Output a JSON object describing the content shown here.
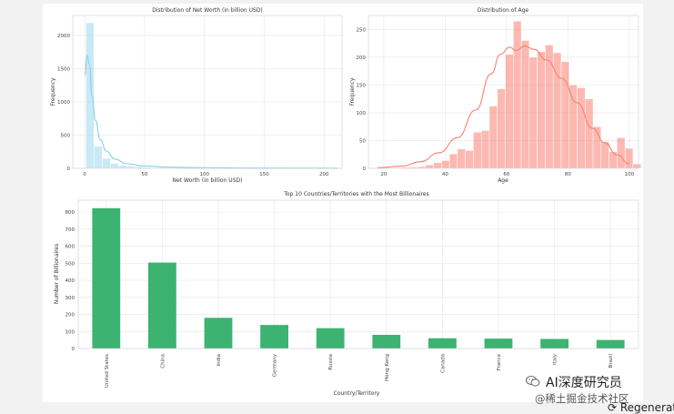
{
  "chart_data": [
    {
      "type": "histogram",
      "title": "Distribution of Net Worth (in billion USD)",
      "xlabel": "Net Worth (in billion USD)",
      "ylabel": "Frequency",
      "xlim": [
        -10,
        215
      ],
      "ylim": [
        0,
        2300
      ],
      "xticks": [
        0,
        50,
        100,
        150,
        200
      ],
      "yticks": [
        0,
        500,
        1000,
        1500,
        2000
      ],
      "bin_width": 6.8,
      "bin_start": 1,
      "values": [
        2190,
        330,
        150,
        75,
        45,
        30,
        22,
        15,
        12,
        10,
        8,
        8,
        6,
        5,
        5,
        4,
        3,
        3,
        3,
        2,
        2,
        2,
        2,
        2,
        1,
        1,
        1,
        1,
        1,
        1
      ],
      "kde": [
        [
          0,
          1400
        ],
        [
          2,
          1700
        ],
        [
          4,
          1560
        ],
        [
          6,
          1100
        ],
        [
          9,
          720
        ],
        [
          13,
          430
        ],
        [
          18,
          260
        ],
        [
          25,
          140
        ],
        [
          35,
          70
        ],
        [
          50,
          35
        ],
        [
          70,
          18
        ],
        [
          100,
          9
        ],
        [
          130,
          5
        ],
        [
          170,
          3
        ],
        [
          211,
          1
        ]
      ],
      "color": "#87ceeb"
    },
    {
      "type": "histogram",
      "title": "Distribution of Age",
      "xlabel": "Age",
      "ylabel": "Frequency",
      "xlim": [
        15,
        103
      ],
      "ylim": [
        0,
        275
      ],
      "xticks": [
        20,
        40,
        60,
        80,
        100
      ],
      "yticks": [
        0,
        50,
        100,
        150,
        200,
        250
      ],
      "bin_width": 2.6,
      "bin_start": 18,
      "values": [
        1,
        1,
        1,
        2,
        2,
        3,
        6,
        10,
        14,
        26,
        35,
        32,
        65,
        68,
        112,
        143,
        205,
        265,
        230,
        200,
        210,
        222,
        208,
        192,
        150,
        145,
        125,
        75,
        48,
        30,
        55,
        36,
        8
      ],
      "kde": [
        [
          18,
          1
        ],
        [
          26,
          4
        ],
        [
          32,
          12
        ],
        [
          38,
          28
        ],
        [
          44,
          55
        ],
        [
          50,
          105
        ],
        [
          55,
          170
        ],
        [
          58,
          205
        ],
        [
          61,
          218
        ],
        [
          63,
          212
        ],
        [
          66,
          220
        ],
        [
          69,
          214
        ],
        [
          73,
          195
        ],
        [
          78,
          162
        ],
        [
          83,
          118
        ],
        [
          88,
          72
        ],
        [
          92,
          46
        ],
        [
          96,
          24
        ],
        [
          100,
          8
        ]
      ],
      "color": "#fa8072"
    },
    {
      "type": "bar",
      "title": "Top 10 Countries/Territories with the Most Billionaires",
      "xlabel": "Country/Territory",
      "ylabel": "Number of Billionaires",
      "categories": [
        "United States",
        "China",
        "India",
        "Germany",
        "Russia",
        "Hong Kong",
        "Canada",
        "France",
        "Italy",
        "Brazil"
      ],
      "values": [
        823,
        504,
        180,
        138,
        119,
        80,
        60,
        58,
        56,
        50
      ],
      "ylim": [
        0,
        870
      ],
      "yticks": [
        0,
        100,
        200,
        300,
        400,
        500,
        600,
        700,
        800
      ],
      "color": "#3cb371"
    }
  ],
  "watermark": {
    "name": "AI深度研究员",
    "sub": "@稀土掘金技术社区"
  },
  "regen_label": "Regenerat"
}
